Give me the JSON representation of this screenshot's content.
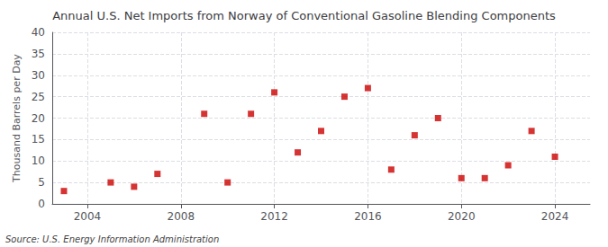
{
  "chart_data": {
    "type": "scatter",
    "title": "Annual U.S. Net Imports from Norway of Conventional Gasoline Blending Components",
    "ylabel": "Thousand Barrels per Day",
    "source": "Source: U.S. Energy Information Administration",
    "x": [
      2003,
      2005,
      2006,
      2007,
      2009,
      2010,
      2011,
      2012,
      2013,
      2014,
      2015,
      2016,
      2017,
      2018,
      2019,
      2020,
      2021,
      2022,
      2023,
      2024
    ],
    "values": [
      3,
      5,
      4,
      7,
      21,
      5,
      21,
      26,
      12,
      17,
      25,
      27,
      8,
      16,
      20,
      6,
      6,
      9,
      17,
      11
    ],
    "color": "#cc0000",
    "marker": "square",
    "xlim": [
      2002.5,
      2025.5
    ],
    "xticks": [
      2004,
      2008,
      2012,
      2016,
      2020,
      2024
    ],
    "ylim": [
      0,
      40
    ],
    "yticks": [
      0,
      5,
      10,
      15,
      20,
      25,
      30,
      35,
      40
    ],
    "grid": true
  }
}
